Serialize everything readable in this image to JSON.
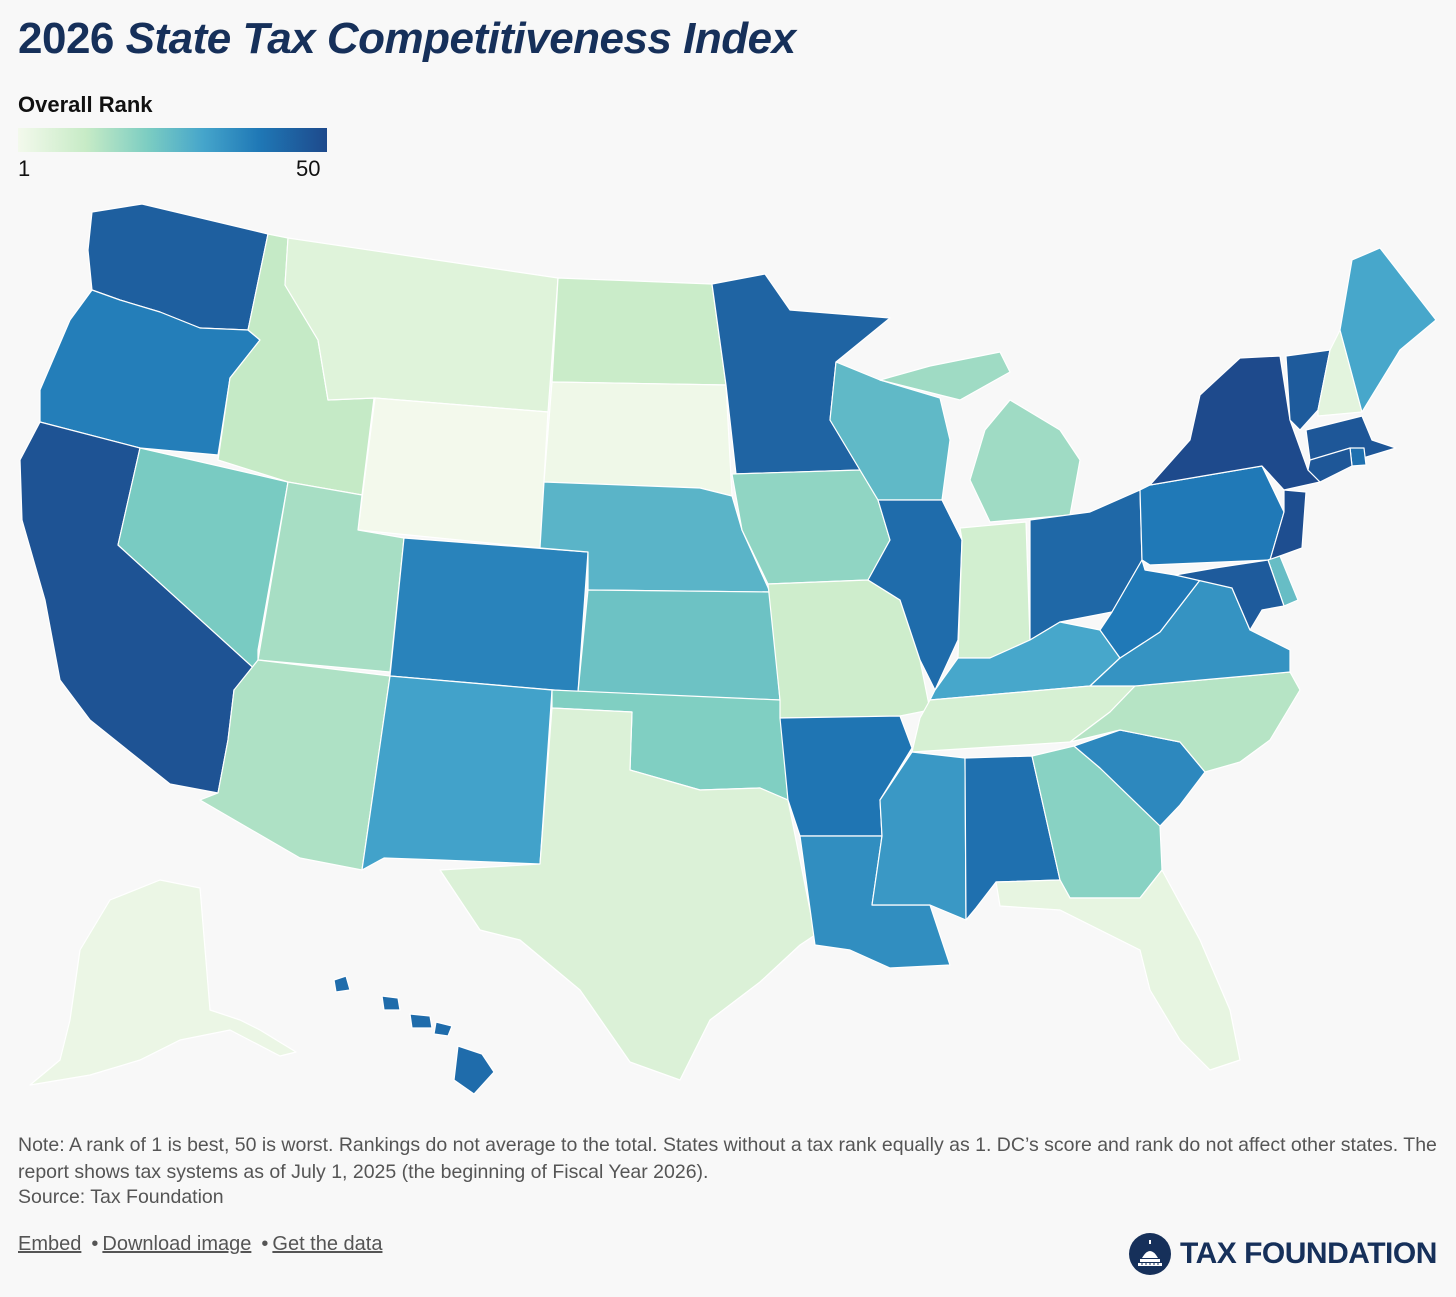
{
  "title": {
    "prefix": "2026",
    "italic": "State Tax Competitiveness Index"
  },
  "legend": {
    "title": "Overall Rank",
    "min_label": "1",
    "max_label": "50",
    "color_low": "#f3f9ec",
    "color_high": "#1e4a8c"
  },
  "note": "Note: A rank of 1 is best, 50 is worst. Rankings do not average to the total. States without a tax rank equally as 1. DC’s score and rank do not affect other states. The report shows tax systems as of July 1, 2025 (the beginning of Fiscal Year 2026).",
  "source": "Source: Tax Foundation",
  "links": {
    "embed": "Embed",
    "download": "Download image",
    "data": "Get the data",
    "separator": "•"
  },
  "brand": {
    "name": "TAX FOUNDATION",
    "color": "#16305a"
  },
  "colors": {
    "background": "#f8f8f8",
    "border": "#ffffff"
  },
  "map_data": {
    "metric": "Overall Rank (estimated from shading)",
    "states": [
      {
        "state": "WA",
        "rank": 45
      },
      {
        "state": "OR",
        "rank": 38
      },
      {
        "state": "CA",
        "rank": 48
      },
      {
        "state": "NV",
        "rank": 22
      },
      {
        "state": "ID",
        "rank": 12
      },
      {
        "state": "MT",
        "rank": 6
      },
      {
        "state": "WY",
        "rank": 1
      },
      {
        "state": "UT",
        "rank": 16
      },
      {
        "state": "CO",
        "rank": 37
      },
      {
        "state": "AZ",
        "rank": 15
      },
      {
        "state": "NM",
        "rank": 31
      },
      {
        "state": "ND",
        "rank": 11
      },
      {
        "state": "SD",
        "rank": 2
      },
      {
        "state": "NE",
        "rank": 27
      },
      {
        "state": "KS",
        "rank": 24
      },
      {
        "state": "OK",
        "rank": 21
      },
      {
        "state": "TX",
        "rank": 7
      },
      {
        "state": "MN",
        "rank": 44
      },
      {
        "state": "IA",
        "rank": 19
      },
      {
        "state": "MO",
        "rank": 10
      },
      {
        "state": "AR",
        "rank": 40
      },
      {
        "state": "LA",
        "rank": 35
      },
      {
        "state": "WI",
        "rank": 26
      },
      {
        "state": "IL",
        "rank": 42
      },
      {
        "state": "MI",
        "rank": 17
      },
      {
        "state": "IN",
        "rank": 9
      },
      {
        "state": "OH",
        "rank": 43
      },
      {
        "state": "KY",
        "rank": 30
      },
      {
        "state": "TN",
        "rank": 8
      },
      {
        "state": "MS",
        "rank": 33
      },
      {
        "state": "AL",
        "rank": 41
      },
      {
        "state": "GA",
        "rank": 20
      },
      {
        "state": "FL",
        "rank": 4
      },
      {
        "state": "SC",
        "rank": 36
      },
      {
        "state": "NC",
        "rank": 14
      },
      {
        "state": "VA",
        "rank": 34
      },
      {
        "state": "WV",
        "rank": 39
      },
      {
        "state": "PA",
        "rank": 39
      },
      {
        "state": "NY",
        "rank": 50
      },
      {
        "state": "VT",
        "rank": 46
      },
      {
        "state": "NH",
        "rank": 5
      },
      {
        "state": "ME",
        "rank": 30
      },
      {
        "state": "MA",
        "rank": 47
      },
      {
        "state": "RI",
        "rank": 41
      },
      {
        "state": "CT",
        "rank": 47
      },
      {
        "state": "NJ",
        "rank": 49
      },
      {
        "state": "DE",
        "rank": 25
      },
      {
        "state": "MD",
        "rank": 46
      },
      {
        "state": "AK",
        "rank": 3
      },
      {
        "state": "HI",
        "rank": 42
      }
    ]
  }
}
